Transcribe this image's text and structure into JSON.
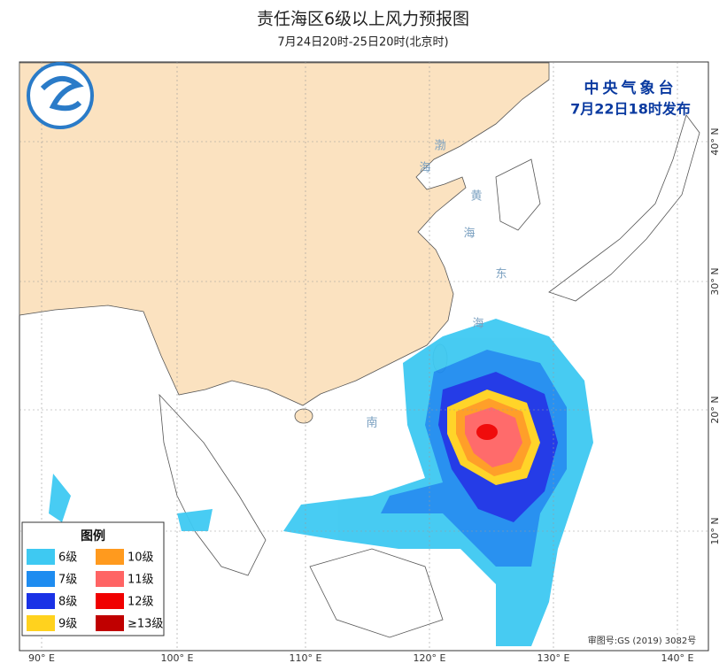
{
  "header": {
    "title": "责任海区6级以上风力预报图",
    "subtitle": "7月24日20时-25日20时(北京时)"
  },
  "agency": {
    "name": "中央气象台",
    "issued": "7月22日18时发布"
  },
  "map": {
    "lon_labels": [
      "90° E",
      "100° E",
      "110° E",
      "120° E",
      "130° E",
      "140° E"
    ],
    "lat_labels": [
      "40° N",
      "30° N",
      "20° N",
      "10° N"
    ],
    "sea_labels": [
      "渤",
      "海",
      "黄",
      "海",
      "东",
      "海",
      "南"
    ],
    "review_number": "审图号:GS (2019) 3082号"
  },
  "legend": {
    "title": "图例",
    "items": [
      {
        "label": "6级",
        "color": "#3ec9f2"
      },
      {
        "label": "10级",
        "color": "#ff9a1e"
      },
      {
        "label": "7级",
        "color": "#1e8cf0"
      },
      {
        "label": "11级",
        "color": "#ff6464"
      },
      {
        "label": "8级",
        "color": "#1a32e6"
      },
      {
        "label": "12级",
        "color": "#f00000"
      },
      {
        "label": "9级",
        "color": "#ffd21e"
      },
      {
        "label": "≥13级",
        "color": "#c00000"
      }
    ]
  }
}
